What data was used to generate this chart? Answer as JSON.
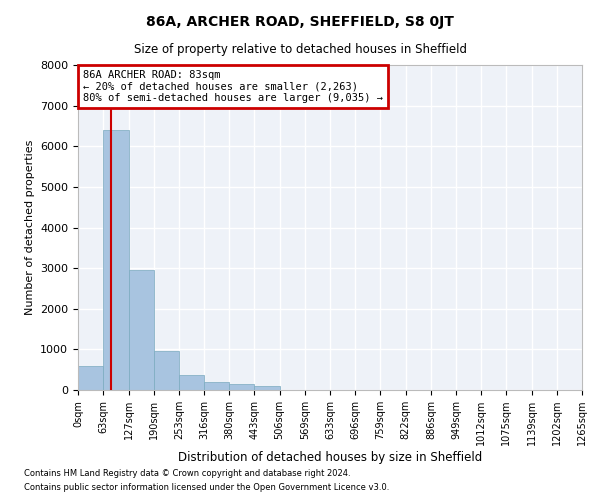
{
  "title": "86A, ARCHER ROAD, SHEFFIELD, S8 0JT",
  "subtitle": "Size of property relative to detached houses in Sheffield",
  "xlabel": "Distribution of detached houses by size in Sheffield",
  "ylabel": "Number of detached properties",
  "bin_edges": [
    0,
    63,
    127,
    190,
    253,
    316,
    380,
    443,
    506,
    569,
    633,
    696,
    759,
    822,
    886,
    949,
    1012,
    1075,
    1139,
    1202,
    1265
  ],
  "bin_labels": [
    "0sqm",
    "63sqm",
    "127sqm",
    "190sqm",
    "253sqm",
    "316sqm",
    "380sqm",
    "443sqm",
    "506sqm",
    "569sqm",
    "633sqm",
    "696sqm",
    "759sqm",
    "822sqm",
    "886sqm",
    "949sqm",
    "1012sqm",
    "1075sqm",
    "1139sqm",
    "1202sqm",
    "1265sqm"
  ],
  "counts": [
    600,
    6400,
    2950,
    960,
    380,
    200,
    150,
    100,
    0,
    0,
    0,
    0,
    0,
    0,
    0,
    0,
    0,
    0,
    0,
    0
  ],
  "bar_color": "#a8c4e0",
  "bar_edge_color": "#7aaabf",
  "property_line_x": 83,
  "property_line_color": "#cc0000",
  "ylim": [
    0,
    8000
  ],
  "yticks": [
    0,
    1000,
    2000,
    3000,
    4000,
    5000,
    6000,
    7000,
    8000
  ],
  "annotation_text": "86A ARCHER ROAD: 83sqm\n← 20% of detached houses are smaller (2,263)\n80% of semi-detached houses are larger (9,035) →",
  "annotation_box_color": "#cc0000",
  "background_color": "#eef2f8",
  "grid_color": "#ffffff",
  "footer_line1": "Contains HM Land Registry data © Crown copyright and database right 2024.",
  "footer_line2": "Contains public sector information licensed under the Open Government Licence v3.0."
}
